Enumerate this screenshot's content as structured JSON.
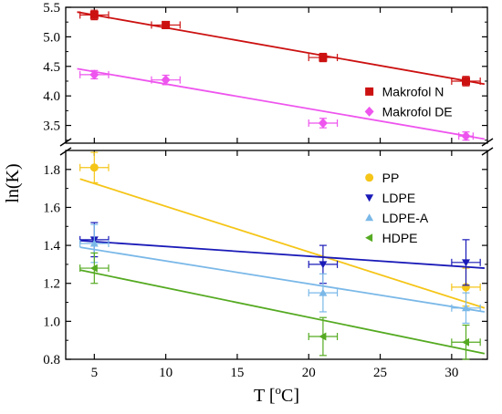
{
  "chart_data": {
    "type": "scatter",
    "xlabel": "T [",
    "xlabel_unit": "C]",
    "xlabel_sup": "o",
    "ylabel": "ln(K)",
    "xlim": [
      3,
      32.5
    ],
    "x_ticks": [
      "5",
      "10",
      "15",
      "20",
      "25",
      "30"
    ],
    "x_tick_values": [
      5,
      10,
      15,
      20,
      25,
      30
    ],
    "broken_y_axis": true,
    "panels": [
      {
        "id": "upper",
        "ylim": [
          3.2,
          5.5
        ],
        "y_ticks": [
          "3.5",
          "4.0",
          "4.5",
          "5.0",
          "5.5"
        ],
        "y_tick_values": [
          3.5,
          4.0,
          4.5,
          5.0,
          5.5
        ],
        "legend_position": "middle-right",
        "series": [
          {
            "name": "Makrofol N",
            "color": "#cc1111",
            "marker": "square",
            "points": [
              {
                "x": 5,
                "y": 5.37,
                "xerr": 1,
                "yerr": 0.08
              },
              {
                "x": 10,
                "y": 5.2,
                "xerr": 1,
                "yerr": 0.06
              },
              {
                "x": 21,
                "y": 4.65,
                "xerr": 1,
                "yerr": 0.07
              },
              {
                "x": 31,
                "y": 4.25,
                "xerr": 1,
                "yerr": 0.08
              }
            ],
            "fit": [
              {
                "x": 3.8,
                "y": 5.42
              },
              {
                "x": 32.3,
                "y": 4.2
              }
            ]
          },
          {
            "name": "Makrofol DE",
            "color": "#ee55ee",
            "marker": "diamond",
            "points": [
              {
                "x": 5,
                "y": 4.36,
                "xerr": 1,
                "yerr": 0.07
              },
              {
                "x": 10,
                "y": 4.27,
                "xerr": 1,
                "yerr": 0.08
              },
              {
                "x": 21,
                "y": 3.54,
                "xerr": 1,
                "yerr": 0.08
              },
              {
                "x": 31,
                "y": 3.32,
                "xerr": 0.5,
                "yerr": 0.07
              }
            ],
            "fit": [
              {
                "x": 3.8,
                "y": 4.46
              },
              {
                "x": 32.3,
                "y": 3.27
              }
            ]
          }
        ]
      },
      {
        "id": "lower",
        "ylim": [
          0.8,
          1.9
        ],
        "y_ticks": [
          "0.8",
          "1.0",
          "1.2",
          "1.4",
          "1.6",
          "1.8"
        ],
        "y_tick_values": [
          0.8,
          1.0,
          1.2,
          1.4,
          1.6,
          1.8
        ],
        "legend_position": "top-right",
        "series": [
          {
            "name": "PP",
            "color": "#f5c518",
            "marker": "circle",
            "points": [
              {
                "x": 5,
                "y": 1.81,
                "xerr": 1,
                "yerr": 0.08
              },
              {
                "x": 31,
                "y": 1.18,
                "xerr": 1,
                "yerr": 0.1
              }
            ],
            "fit": [
              {
                "x": 4,
                "y": 1.75
              },
              {
                "x": 32.3,
                "y": 1.07
              }
            ]
          },
          {
            "name": "LDPE",
            "color": "#1a1ab8",
            "marker": "triangle-down",
            "points": [
              {
                "x": 5,
                "y": 1.43,
                "xerr": 1,
                "yerr": 0.09
              },
              {
                "x": 21,
                "y": 1.3,
                "xerr": 1,
                "yerr": 0.1
              },
              {
                "x": 31,
                "y": 1.31,
                "xerr": 1,
                "yerr": 0.12
              }
            ],
            "fit": [
              {
                "x": 4,
                "y": 1.425
              },
              {
                "x": 32.3,
                "y": 1.28
              }
            ]
          },
          {
            "name": "LDPE-A",
            "color": "#7ab8e8",
            "marker": "triangle-up",
            "points": [
              {
                "x": 5,
                "y": 1.41,
                "xerr": 1,
                "yerr": 0.1
              },
              {
                "x": 21,
                "y": 1.15,
                "xerr": 1,
                "yerr": 0.1
              },
              {
                "x": 31,
                "y": 1.07,
                "xerr": 1,
                "yerr": 0.08
              }
            ],
            "fit": [
              {
                "x": 4,
                "y": 1.39
              },
              {
                "x": 32.3,
                "y": 1.05
              }
            ]
          },
          {
            "name": "HDPE",
            "color": "#55aa22",
            "marker": "triangle-left",
            "points": [
              {
                "x": 5,
                "y": 1.28,
                "xerr": 1,
                "yerr": 0.08
              },
              {
                "x": 21,
                "y": 0.92,
                "xerr": 1,
                "yerr": 0.1
              },
              {
                "x": 31,
                "y": 0.89,
                "xerr": 1,
                "yerr": 0.09
              }
            ],
            "fit": [
              {
                "x": 4,
                "y": 1.27
              },
              {
                "x": 32.3,
                "y": 0.83
              }
            ]
          }
        ]
      }
    ]
  }
}
